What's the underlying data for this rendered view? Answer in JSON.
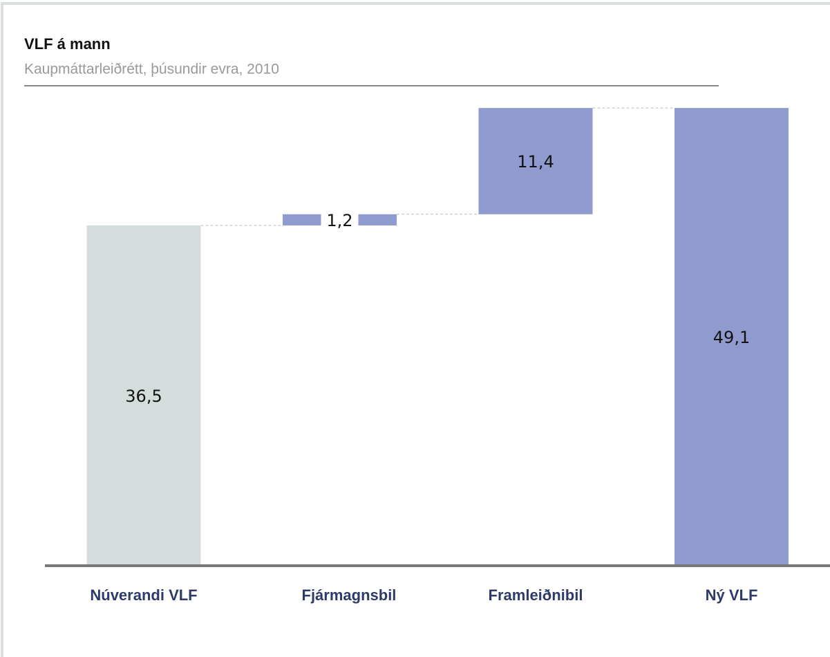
{
  "chart_data": {
    "type": "waterfall",
    "title": "VLF á mann",
    "subtitle": "Kaupmáttarleiðrétt, þúsundir evra, 2010",
    "categories": [
      "Núverandi VLF",
      "Fjármagnsbil",
      "Framleiðnibil",
      "Ný VLF"
    ],
    "values": [
      36.5,
      1.2,
      11.4,
      49.1
    ],
    "value_labels": [
      "36,5",
      "1,2",
      "11,4",
      "49,1"
    ],
    "totals": [
      true,
      false,
      false,
      true
    ],
    "colors": [
      "#d5dcdc",
      "#8f9bcf",
      "#8f9bcf",
      "#8f9bcf"
    ]
  }
}
